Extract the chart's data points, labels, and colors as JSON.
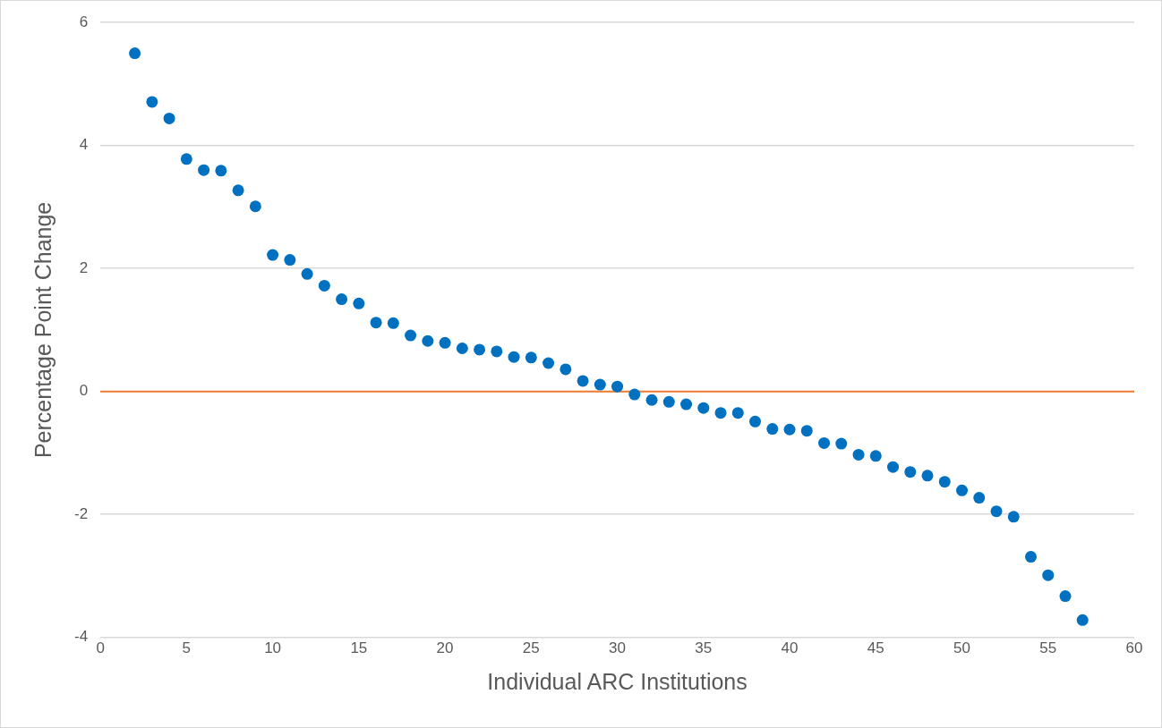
{
  "chart_data": {
    "type": "scatter",
    "xlabel": "Individual ARC Institutions",
    "ylabel": "Percentage Point Change",
    "x": [
      2,
      3,
      4,
      5,
      6,
      7,
      8,
      9,
      10,
      11,
      12,
      13,
      14,
      15,
      16,
      17,
      18,
      19,
      20,
      21,
      22,
      23,
      24,
      25,
      26,
      27,
      28,
      29,
      30,
      31,
      32,
      33,
      34,
      35,
      36,
      37,
      38,
      39,
      40,
      41,
      42,
      43,
      44,
      45,
      46,
      47,
      48,
      49,
      50,
      51,
      52,
      53,
      54,
      55,
      56,
      57
    ],
    "series": [
      {
        "color": "#0070c0",
        "values": [
          5.5,
          4.71,
          4.44,
          3.78,
          3.6,
          3.59,
          3.27,
          3.01,
          2.22,
          2.14,
          1.91,
          1.72,
          1.5,
          1.43,
          1.12,
          1.11,
          0.91,
          0.82,
          0.79,
          0.7,
          0.68,
          0.65,
          0.56,
          0.55,
          0.46,
          0.36,
          0.17,
          0.11,
          0.08,
          -0.05,
          -0.14,
          -0.17,
          -0.21,
          -0.27,
          -0.35,
          -0.35,
          -0.49,
          -0.61,
          -0.62,
          -0.64,
          -0.84,
          -0.85,
          -1.03,
          -1.05,
          -1.23,
          -1.31,
          -1.37,
          -1.47,
          -1.61,
          -1.73,
          -1.95,
          -2.04,
          -2.69,
          -2.99,
          -3.33,
          -3.72
        ]
      }
    ],
    "xlim": [
      0,
      60
    ],
    "xticks": [
      0,
      5,
      10,
      15,
      20,
      25,
      30,
      35,
      40,
      45,
      50,
      55,
      60
    ],
    "ylim": [
      -4,
      6
    ],
    "yticks": [
      -4,
      -2,
      0,
      2,
      4,
      6
    ],
    "ref_lines": [
      {
        "axis": "y",
        "value": 0,
        "color": "#ed7d31"
      }
    ],
    "grid": "y",
    "marker": "circle",
    "legend": false
  }
}
